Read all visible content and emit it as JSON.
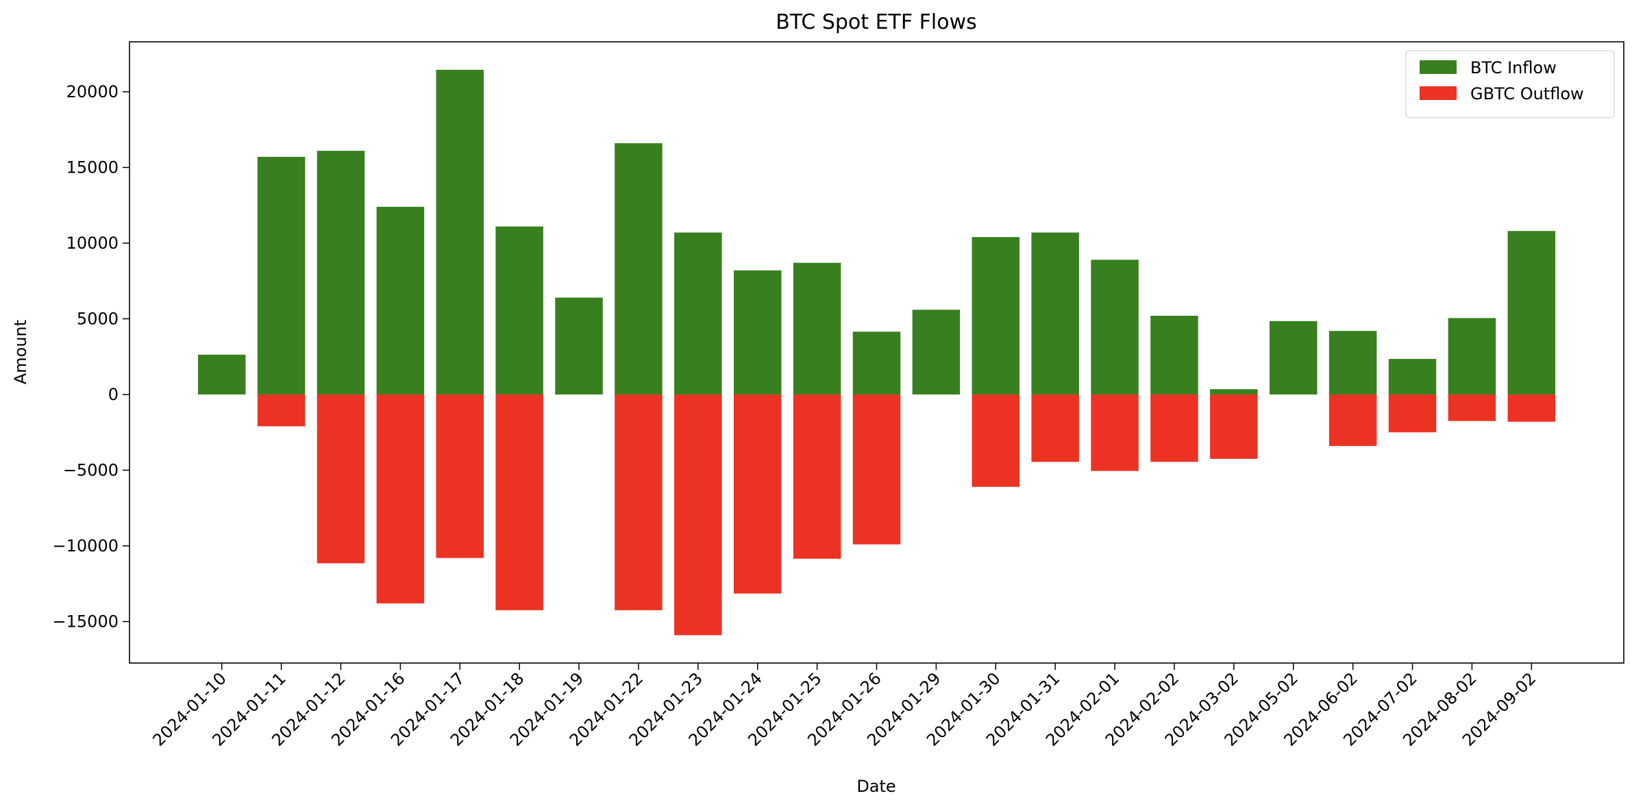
{
  "chart_data": {
    "type": "bar",
    "title": "BTC Spot ETF Flows",
    "xlabel": "Date",
    "ylabel": "Amount",
    "ylim": [
      -17740,
      23300
    ],
    "yticks": [
      -15000,
      -10000,
      -5000,
      0,
      5000,
      10000,
      15000,
      20000
    ],
    "grid": false,
    "legend_position": "top-right",
    "categories": [
      "2024-01-10",
      "2024-01-11",
      "2024-01-12",
      "2024-01-16",
      "2024-01-17",
      "2024-01-18",
      "2024-01-19",
      "2024-01-22",
      "2024-01-23",
      "2024-01-24",
      "2024-01-25",
      "2024-01-26",
      "2024-01-29",
      "2024-01-30",
      "2024-01-31",
      "2024-02-01",
      "2024-02-02",
      "2024-03-02",
      "2024-05-02",
      "2024-06-02",
      "2024-07-02",
      "2024-08-02",
      "2024-09-02"
    ],
    "series": [
      {
        "name": "BTC Inflow",
        "color": "#38801f",
        "values": [
          2630,
          15700,
          16100,
          12400,
          21450,
          11100,
          6400,
          16600,
          10700,
          8200,
          8700,
          4150,
          5600,
          10400,
          10700,
          8900,
          5200,
          350,
          4850,
          4200,
          2350,
          5050,
          10800
        ]
      },
      {
        "name": "GBTC Outflow",
        "color": "#ec3323",
        "values": [
          0,
          -2100,
          -11150,
          -13800,
          -10800,
          -14250,
          0,
          -14250,
          -15900,
          -13150,
          -10850,
          -9900,
          0,
          -6100,
          -4450,
          -5050,
          -4450,
          -4250,
          0,
          -3400,
          -2500,
          -1750,
          -1800
        ]
      }
    ]
  }
}
